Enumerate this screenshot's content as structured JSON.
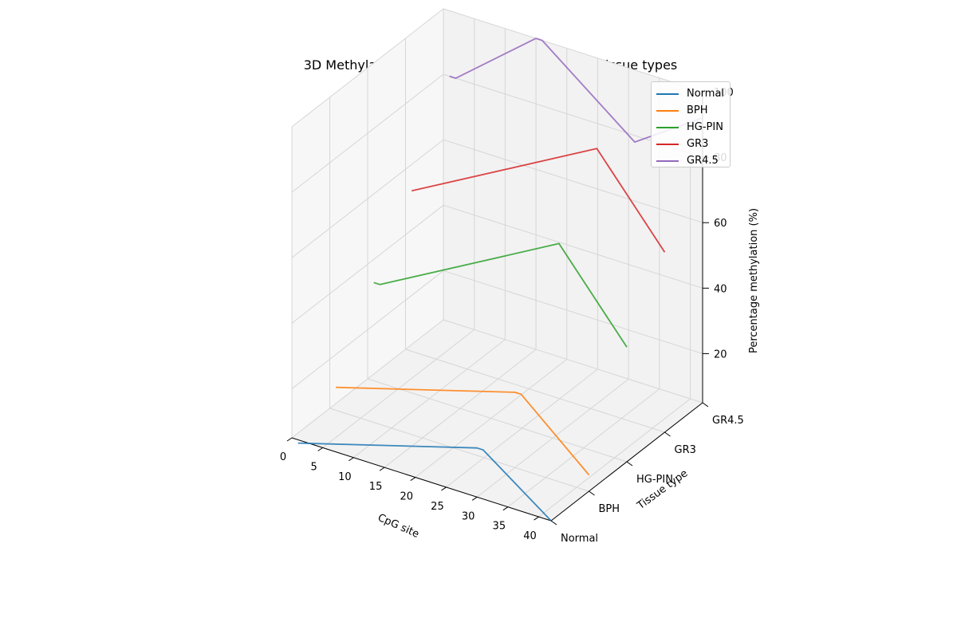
{
  "chart_data": {
    "type": "line",
    "title": "3D Methylation patterns across CpG sites and tissue types",
    "xlabel": "CpG site",
    "ylabel": "Tissue type",
    "zlabel": "Percentage methylation (%)",
    "xlim": [
      0,
      42
    ],
    "zlim": [
      5,
      100
    ],
    "x_ticks": [
      "0",
      "5",
      "10",
      "15",
      "20",
      "25",
      "30",
      "35",
      "40"
    ],
    "y_ticks": [
      "Normal",
      "BPH",
      "HG-PIN",
      "GR3",
      "GR4.5"
    ],
    "z_ticks": [
      "20",
      "40",
      "60",
      "80",
      "100"
    ],
    "legend_position": "top-right",
    "series": [
      {
        "name": "Normal",
        "color": "#1f77b4",
        "tissue_index": 0,
        "x": [
          1,
          30,
          31,
          42
        ],
        "z": [
          4,
          20,
          20,
          5
        ]
      },
      {
        "name": "BPH",
        "color": "#ff7f0e",
        "tissue_index": 1,
        "x": [
          1,
          30,
          31,
          42
        ],
        "z": [
          12,
          28,
          28,
          10
        ]
      },
      {
        "name": "HG-PIN",
        "color": "#2ca02c",
        "tissue_index": 2,
        "x": [
          1,
          2,
          31,
          42
        ],
        "z": [
          35,
          35,
          65,
          40
        ]
      },
      {
        "name": "GR3",
        "color": "#d62728",
        "tissue_index": 3,
        "x": [
          1,
          31,
          42
        ],
        "z": [
          54,
          85,
          60
        ]
      },
      {
        "name": "GR4.5",
        "color": "#9467bd",
        "tissue_index": 4,
        "x": [
          1,
          2,
          15,
          16,
          31,
          42
        ],
        "z": [
          80,
          80,
          100,
          100,
          78,
          92
        ]
      }
    ]
  }
}
